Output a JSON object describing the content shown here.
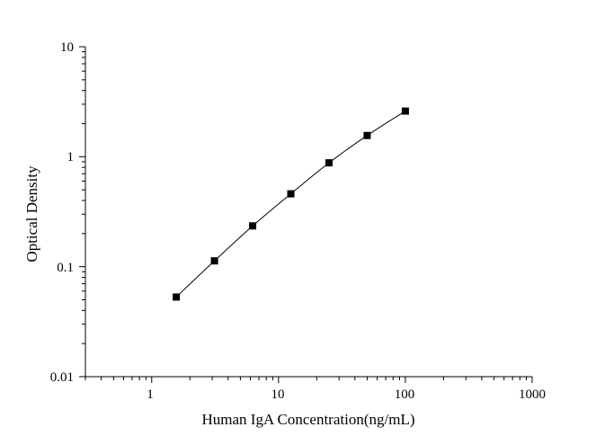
{
  "chart_data": {
    "type": "scatter",
    "title": "",
    "xlabel": "Human IgA Concentration(ng/mL)",
    "ylabel": "Optical Density",
    "xscale": "log",
    "yscale": "log",
    "xlim": [
      0.3,
      1000
    ],
    "ylim": [
      0.01,
      10
    ],
    "x_ticks": [
      "1",
      "10",
      "100",
      "1000"
    ],
    "y_ticks": [
      "0.01",
      "0.1",
      "1",
      "10"
    ],
    "grid": false,
    "legend": "none",
    "series": [
      {
        "x": [
          1.5625,
          3.125,
          6.25,
          12.5,
          25,
          50,
          100
        ],
        "y": [
          0.053,
          0.113,
          0.235,
          0.46,
          0.88,
          1.56,
          2.6
        ],
        "marker": "square",
        "fitted_curve": true
      }
    ],
    "colors": {
      "points": "#000000",
      "curve": "#000000",
      "axes": "#000000"
    }
  }
}
